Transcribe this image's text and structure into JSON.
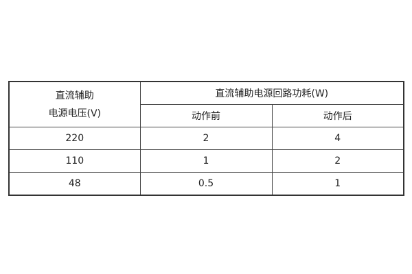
{
  "table": {
    "header": {
      "col1": [
        "直流辅助",
        "电源电压(V)"
      ],
      "group": "直流辅助电源回路功耗(W)",
      "sub": [
        "动作前",
        "动作后"
      ]
    },
    "rows": [
      [
        "220",
        "2",
        "4"
      ],
      [
        "110",
        "1",
        "2"
      ],
      [
        "48",
        "0.5",
        "1"
      ]
    ]
  }
}
